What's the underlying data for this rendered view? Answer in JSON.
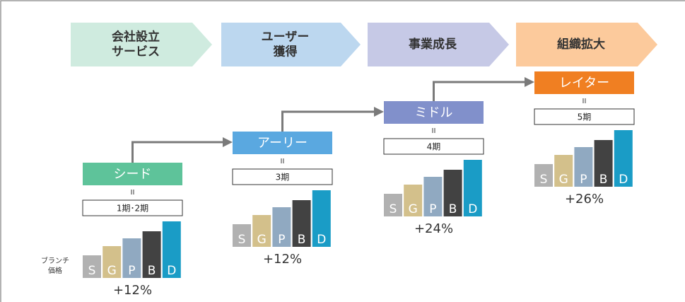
{
  "header": {
    "steps": [
      {
        "label": [
          "会社設立",
          "サービス"
        ]
      },
      {
        "label": [
          "ユーザー",
          "獲得"
        ]
      },
      {
        "label": [
          "事業成長"
        ]
      },
      {
        "label": [
          "組織拡大"
        ]
      }
    ]
  },
  "price_label": [
    "ブランチ",
    "価格"
  ],
  "bar_labels": [
    "S",
    "G",
    "P",
    "B",
    "D"
  ],
  "stages": [
    {
      "name": "シード",
      "equals": "II",
      "period": "1期･2期",
      "increase": "+12%"
    },
    {
      "name": "アーリー",
      "equals": "II",
      "period": "3期",
      "increase": "+12%"
    },
    {
      "name": "ミドル",
      "equals": "II",
      "period": "4期",
      "increase": "+24%"
    },
    {
      "name": "レイター",
      "equals": "II",
      "period": "5期",
      "increase": "+26%"
    }
  ]
}
